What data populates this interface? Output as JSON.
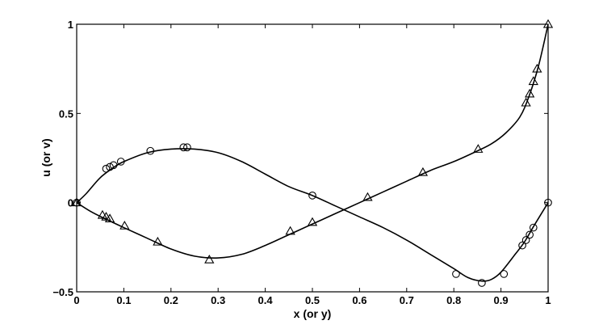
{
  "chart_data": {
    "type": "line",
    "xlabel": "x (or y)",
    "ylabel": "u (or v)",
    "xlim": [
      0,
      1
    ],
    "ylim": [
      -0.5,
      1
    ],
    "xticks": [
      "0",
      "0.1",
      "0.2",
      "0.3",
      "0.4",
      "0.5",
      "0.6",
      "0.7",
      "0.8",
      "0.9",
      "1"
    ],
    "xtick_values": [
      0,
      0.1,
      0.2,
      0.3,
      0.4,
      0.5,
      0.6,
      0.7,
      0.8,
      0.9,
      1
    ],
    "yticks": [
      "−0.5",
      "0",
      "0.5",
      "1"
    ],
    "ytick_values": [
      -0.5,
      0,
      0.5,
      1
    ],
    "grid": false,
    "series": [
      {
        "marker": "circle",
        "curve": {
          "x": [
            0,
            0.02,
            0.05,
            0.08,
            0.1,
            0.15,
            0.2,
            0.25,
            0.3,
            0.35,
            0.4,
            0.45,
            0.5,
            0.55,
            0.6,
            0.65,
            0.7,
            0.75,
            0.8,
            0.83,
            0.86,
            0.88,
            0.9,
            0.93,
            0.95,
            0.97,
            1
          ],
          "y": [
            0,
            0.05,
            0.14,
            0.2,
            0.23,
            0.28,
            0.3,
            0.3,
            0.28,
            0.23,
            0.16,
            0.09,
            0.04,
            -0.02,
            -0.08,
            -0.14,
            -0.21,
            -0.29,
            -0.37,
            -0.42,
            -0.44,
            -0.43,
            -0.39,
            -0.29,
            -0.22,
            -0.13,
            0
          ]
        },
        "points": {
          "x": [
            0,
            0.0625,
            0.0703,
            0.0781,
            0.0938,
            0.1563,
            0.2266,
            0.2344,
            0.5,
            0.8047,
            0.8594,
            0.9063,
            0.9453,
            0.9531,
            0.9609,
            0.9688,
            1
          ],
          "y": [
            0,
            0.19,
            0.2,
            0.21,
            0.23,
            0.29,
            0.31,
            0.31,
            0.04,
            -0.4,
            -0.45,
            -0.4,
            -0.24,
            -0.21,
            -0.18,
            -0.14,
            0
          ]
        }
      },
      {
        "marker": "triangle",
        "curve": {
          "x": [
            0,
            0.03,
            0.06,
            0.1,
            0.15,
            0.2,
            0.25,
            0.3,
            0.35,
            0.4,
            0.45,
            0.5,
            0.55,
            0.6,
            0.65,
            0.7,
            0.75,
            0.8,
            0.85,
            0.88,
            0.91,
            0.94,
            0.96,
            0.98,
            1
          ],
          "y": [
            0,
            -0.05,
            -0.09,
            -0.14,
            -0.2,
            -0.26,
            -0.3,
            -0.31,
            -0.29,
            -0.24,
            -0.18,
            -0.12,
            -0.06,
            0,
            0.06,
            0.12,
            0.18,
            0.23,
            0.29,
            0.33,
            0.39,
            0.48,
            0.6,
            0.77,
            1
          ]
        },
        "points": {
          "x": [
            0,
            0.0547,
            0.0625,
            0.0703,
            0.1016,
            0.1719,
            0.2813,
            0.4531,
            0.5,
            0.6172,
            0.7344,
            0.8516,
            0.9531,
            0.9609,
            0.9688,
            0.9766,
            1
          ],
          "y": [
            0,
            -0.07,
            -0.08,
            -0.09,
            -0.13,
            -0.22,
            -0.32,
            -0.16,
            -0.11,
            0.03,
            0.17,
            0.3,
            0.56,
            0.61,
            0.68,
            0.75,
            1
          ]
        }
      }
    ]
  }
}
